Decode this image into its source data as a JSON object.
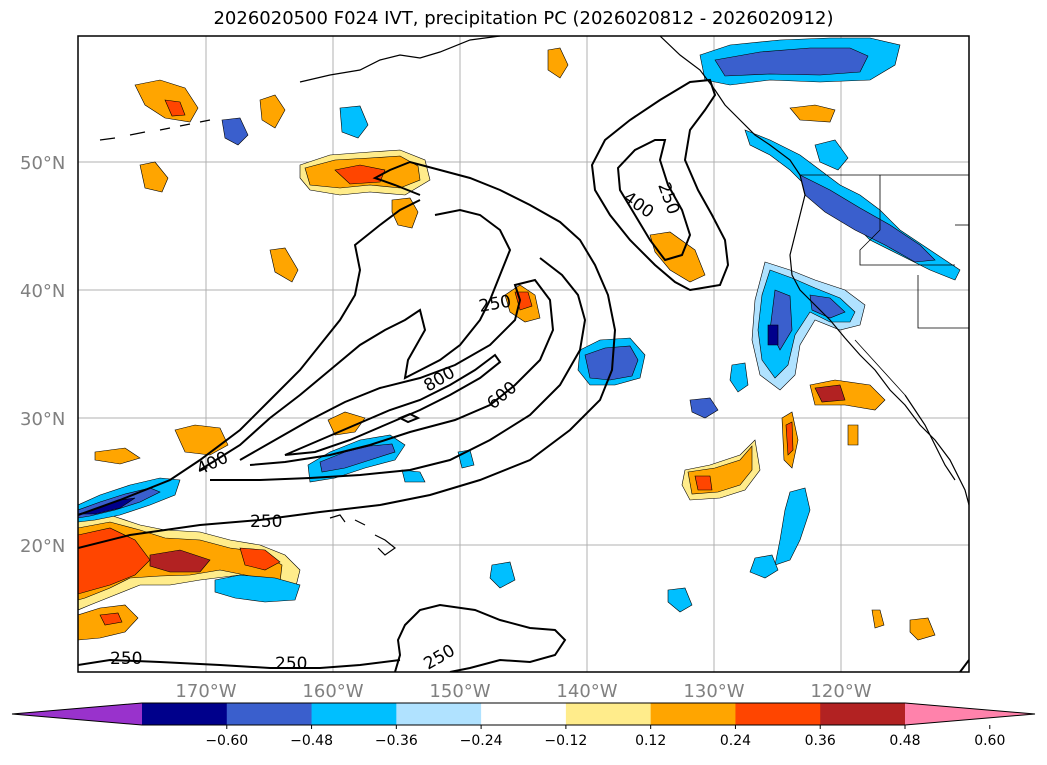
{
  "title": "2026020500 F024 IVT, precipitation PC (2026020812 - 2026020912)",
  "map": {
    "lat_labels": [
      "50°N",
      "40°N",
      "30°N",
      "20°N"
    ],
    "lon_labels": [
      "170°W",
      "160°W",
      "150°W",
      "140°W",
      "130°W",
      "120°W"
    ],
    "contour_labels": [
      {
        "id": "ctr-250-a",
        "text": "250"
      },
      {
        "id": "ctr-250-b",
        "text": "250"
      },
      {
        "id": "ctr-400-a",
        "text": "400"
      },
      {
        "id": "ctr-400-b",
        "text": "400"
      },
      {
        "id": "ctr-800",
        "text": "800"
      },
      {
        "id": "ctr-600",
        "text": "600"
      },
      {
        "id": "ctr-250-c",
        "text": "250"
      },
      {
        "id": "ctr-250-d",
        "text": "250"
      },
      {
        "id": "ctr-250-e",
        "text": "250"
      },
      {
        "id": "ctr-250-f",
        "text": "250"
      }
    ]
  },
  "colorbar": {
    "colors": [
      "#9932cc",
      "#00008b",
      "#3a5fcd",
      "#00bfff",
      "#b0e2ff",
      "#ffffff",
      "#ffec8b",
      "#ffa500",
      "#ff4500",
      "#b22222",
      "#ff82ab"
    ],
    "tick_labels": [
      "−0.60",
      "−0.48",
      "−0.36",
      "−0.24",
      "−0.12",
      "0.12",
      "0.24",
      "0.36",
      "0.48",
      "0.60"
    ]
  }
}
